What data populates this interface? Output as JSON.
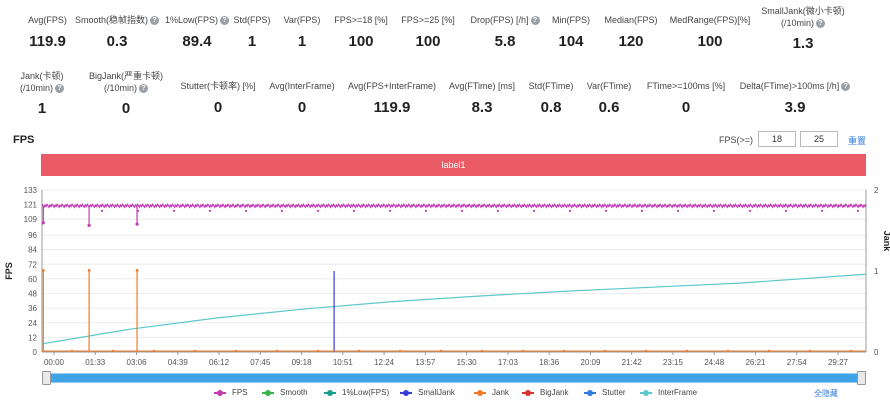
{
  "stats_row1": [
    {
      "label": "Avg(FPS)",
      "value": "119.9",
      "help": false
    },
    {
      "label": "Smooth(稳帧指数)",
      "value": "0.3",
      "help": true
    },
    {
      "label": "1%Low(FPS)",
      "value": "89.4",
      "help": true
    },
    {
      "label": "Std(FPS)",
      "value": "1",
      "help": false
    },
    {
      "label": "Var(FPS)",
      "value": "1",
      "help": false
    },
    {
      "label": "FPS>=18 [%]",
      "value": "100",
      "help": false
    },
    {
      "label": "FPS>=25 [%]",
      "value": "100",
      "help": false
    },
    {
      "label": "Drop(FPS) [/h]",
      "value": "5.8",
      "help": true
    },
    {
      "label": "Min(FPS)",
      "value": "104",
      "help": false
    },
    {
      "label": "Median(FPS)",
      "value": "120",
      "help": false
    },
    {
      "label": "MedRange(FPS)[%]",
      "value": "100",
      "help": false
    },
    {
      "label": "SmallJank(微小卡顿)",
      "label2": "(/10min)",
      "value": "1.3",
      "help": true
    }
  ],
  "stats_row2": [
    {
      "label": "Jank(卡顿)",
      "label2": "(/10min)",
      "value": "1",
      "help": true
    },
    {
      "label": "BigJank(严重卡顿)",
      "label2": "(/10min)",
      "value": "0",
      "help": true
    },
    {
      "label": "Stutter(卡顿率) [%]",
      "value": "0",
      "help": false
    },
    {
      "label": "Avg(InterFrame)",
      "value": "0",
      "help": false
    },
    {
      "label": "Avg(FPS+InterFrame)",
      "value": "119.9",
      "help": false
    },
    {
      "label": "Avg(FTime) [ms]",
      "value": "8.3",
      "help": false
    },
    {
      "label": "Std(FTime)",
      "value": "0.8",
      "help": false
    },
    {
      "label": "Var(FTime)",
      "value": "0.6",
      "help": false
    },
    {
      "label": "FTime>=100ms [%]",
      "value": "0",
      "help": false
    },
    {
      "label": "Delta(FTime)>100ms [/h]",
      "value": "3.9",
      "help": true
    }
  ],
  "section_title": "FPS",
  "threshold": {
    "label": "FPS(>=)",
    "value1": "18",
    "value2": "25",
    "reset_label": "重置"
  },
  "label_bar": "label1",
  "chart_data": {
    "type": "line",
    "ylabel": "FPS",
    "y2label": "Jank",
    "yticks": [
      0,
      12,
      24,
      36,
      48,
      60,
      72,
      84,
      96,
      109,
      121,
      133
    ],
    "ylim": [
      0,
      133
    ],
    "y2ticks": [
      0,
      1,
      2
    ],
    "y2lim": [
      0,
      2
    ],
    "xticks": [
      "00:00",
      "01:33",
      "03:06",
      "04:39",
      "06:12",
      "07:45",
      "09:18",
      "10:51",
      "12:24",
      "13:57",
      "15:30",
      "17:03",
      "18:36",
      "20:09",
      "21:42",
      "23:15",
      "24:48",
      "26:21",
      "27:54",
      "29:27"
    ],
    "duration_s": 1890,
    "fps_baseline": 120,
    "fps_dips": [
      {
        "t": 3,
        "value": 106
      },
      {
        "t": 108,
        "value": 104
      },
      {
        "t": 218,
        "value": 105
      }
    ],
    "jank_events": [
      {
        "series": "Jank",
        "t": 3,
        "value": 1
      },
      {
        "series": "Jank",
        "t": 108,
        "value": 1
      },
      {
        "series": "Jank",
        "t": 218,
        "value": 1
      },
      {
        "series": "SmallJank",
        "t": 670,
        "value": 1
      }
    ],
    "interframe_curve": [
      {
        "t": 0,
        "value": 0.1
      },
      {
        "t": 200,
        "value": 0.28
      },
      {
        "t": 400,
        "value": 0.42
      },
      {
        "t": 600,
        "value": 0.53
      },
      {
        "t": 800,
        "value": 0.62
      },
      {
        "t": 1000,
        "value": 0.69
      },
      {
        "t": 1200,
        "value": 0.75
      },
      {
        "t": 1400,
        "value": 0.8
      },
      {
        "t": 1600,
        "value": 0.85
      },
      {
        "t": 1890,
        "value": 0.96
      }
    ],
    "legend": [
      {
        "name": "FPS",
        "color": "#c23cb4"
      },
      {
        "name": "Smooth",
        "color": "#3cb44a"
      },
      {
        "name": "1%Low(FPS)",
        "color": "#1a9e8c"
      },
      {
        "name": "SmallJank",
        "color": "#3b3bd6"
      },
      {
        "name": "Jank",
        "color": "#f07a2a"
      },
      {
        "name": "BigJank",
        "color": "#d93030"
      },
      {
        "name": "Stutter",
        "color": "#2f7bd9"
      },
      {
        "name": "InterFrame",
        "color": "#5cc8cc"
      }
    ]
  },
  "hide_all_label": "全隐藏"
}
